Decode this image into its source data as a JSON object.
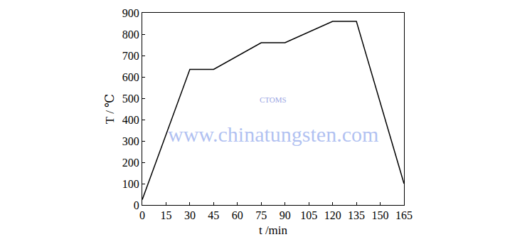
{
  "chart_data": {
    "type": "line",
    "x_label": "t /min",
    "y_label": "T / ℃",
    "x": [
      0,
      30,
      45,
      75,
      90,
      120,
      135,
      165
    ],
    "values": [
      25,
      635,
      635,
      760,
      760,
      860,
      860,
      100
    ],
    "color": "#000000",
    "xlim": [
      0,
      165
    ],
    "xticks": [
      0,
      15,
      30,
      45,
      60,
      75,
      90,
      105,
      120,
      135,
      150,
      165
    ],
    "ylim": [
      0,
      900
    ],
    "yticks": [
      0,
      100,
      200,
      300,
      400,
      500,
      600,
      700,
      800,
      900
    ],
    "grid": false,
    "annotations": [
      "CTOMS",
      "www.chinatungsten.com"
    ]
  }
}
